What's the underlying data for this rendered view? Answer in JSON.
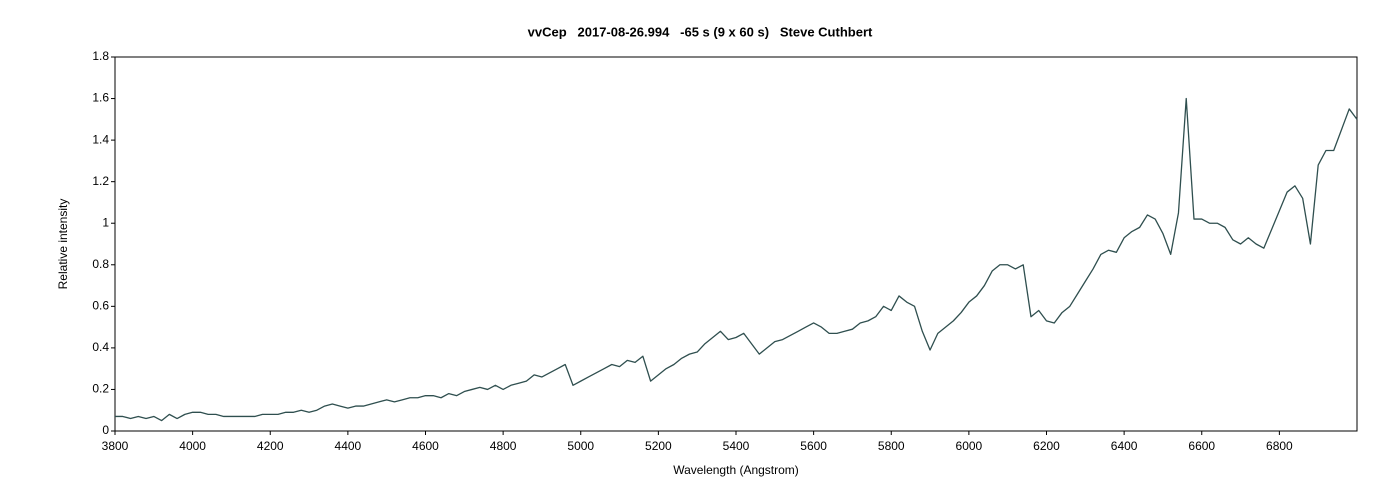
{
  "chart_data": {
    "type": "line",
    "title": "vvCep   2017-08-26.994   -65 s (9 x 60 s)   Steve Cuthbert",
    "xlabel": "Wavelength (Angstrom)",
    "ylabel": "Relative intensity",
    "x": [
      3800,
      3820,
      3840,
      3860,
      3880,
      3900,
      3920,
      3940,
      3960,
      3980,
      4000,
      4020,
      4040,
      4060,
      4080,
      4100,
      4120,
      4140,
      4160,
      4180,
      4200,
      4220,
      4240,
      4260,
      4280,
      4300,
      4320,
      4340,
      4360,
      4380,
      4400,
      4420,
      4440,
      4460,
      4480,
      4500,
      4520,
      4540,
      4560,
      4580,
      4600,
      4620,
      4640,
      4660,
      4680,
      4700,
      4720,
      4740,
      4760,
      4780,
      4800,
      4820,
      4840,
      4860,
      4880,
      4900,
      4920,
      4940,
      4960,
      4980,
      5000,
      5020,
      5040,
      5060,
      5080,
      5100,
      5120,
      5140,
      5160,
      5180,
      5200,
      5220,
      5240,
      5260,
      5280,
      5300,
      5320,
      5340,
      5360,
      5380,
      5400,
      5420,
      5440,
      5460,
      5480,
      5500,
      5520,
      5540,
      5560,
      5580,
      5600,
      5620,
      5640,
      5660,
      5680,
      5700,
      5720,
      5740,
      5760,
      5780,
      5800,
      5820,
      5840,
      5860,
      5880,
      5900,
      5920,
      5940,
      5960,
      5980,
      6000,
      6020,
      6040,
      6060,
      6080,
      6100,
      6120,
      6140,
      6160,
      6180,
      6200,
      6220,
      6240,
      6260,
      6280,
      6300,
      6320,
      6340,
      6360,
      6380,
      6400,
      6420,
      6440,
      6460,
      6480,
      6500,
      6520,
      6540,
      6560,
      6580,
      6600,
      6620,
      6640,
      6660,
      6680,
      6700,
      6720,
      6740,
      6760,
      6780,
      6800,
      6820,
      6840,
      6860,
      6880,
      6900,
      6920,
      6940,
      6960,
      6980,
      7000
    ],
    "values": [
      0.07,
      0.07,
      0.06,
      0.07,
      0.06,
      0.07,
      0.05,
      0.08,
      0.06,
      0.08,
      0.09,
      0.09,
      0.08,
      0.08,
      0.07,
      0.07,
      0.07,
      0.07,
      0.07,
      0.08,
      0.08,
      0.08,
      0.09,
      0.09,
      0.1,
      0.09,
      0.1,
      0.12,
      0.13,
      0.12,
      0.11,
      0.12,
      0.12,
      0.13,
      0.14,
      0.15,
      0.14,
      0.15,
      0.16,
      0.16,
      0.17,
      0.17,
      0.16,
      0.18,
      0.17,
      0.19,
      0.2,
      0.21,
      0.2,
      0.22,
      0.2,
      0.22,
      0.23,
      0.24,
      0.27,
      0.26,
      0.28,
      0.3,
      0.32,
      0.22,
      0.24,
      0.26,
      0.28,
      0.3,
      0.32,
      0.31,
      0.34,
      0.33,
      0.36,
      0.24,
      0.27,
      0.3,
      0.32,
      0.35,
      0.37,
      0.38,
      0.42,
      0.45,
      0.48,
      0.44,
      0.45,
      0.47,
      0.42,
      0.37,
      0.4,
      0.43,
      0.44,
      0.46,
      0.48,
      0.5,
      0.52,
      0.5,
      0.47,
      0.47,
      0.48,
      0.49,
      0.52,
      0.53,
      0.55,
      0.6,
      0.58,
      0.65,
      0.62,
      0.6,
      0.48,
      0.39,
      0.47,
      0.5,
      0.53,
      0.57,
      0.62,
      0.65,
      0.7,
      0.77,
      0.8,
      0.8,
      0.78,
      0.8,
      0.55,
      0.58,
      0.53,
      0.52,
      0.57,
      0.6,
      0.66,
      0.72,
      0.78,
      0.85,
      0.87,
      0.86,
      0.93,
      0.96,
      0.98,
      1.04,
      1.02,
      0.95,
      0.85,
      1.05,
      1.6,
      1.02,
      1.02,
      1,
      1,
      0.98,
      0.92,
      0.9,
      0.93,
      0.9,
      0.88,
      0.97,
      1.06,
      1.15,
      1.18,
      1.12,
      0.9,
      1.28,
      1.35,
      1.35,
      1.45,
      1.55,
      1.5
    ],
    "color": "#2f4f4f",
    "xlim": [
      3800,
      7000
    ],
    "xticks": [
      3800,
      4000,
      4200,
      4400,
      4600,
      4800,
      5000,
      5200,
      5400,
      5600,
      5800,
      6000,
      6200,
      6400,
      6600,
      6800
    ],
    "ylim": [
      0,
      1.8
    ],
    "yticks": [
      0,
      0.2,
      0.4,
      0.6,
      0.8,
      1,
      1.2,
      1.4,
      1.6,
      1.8
    ]
  }
}
